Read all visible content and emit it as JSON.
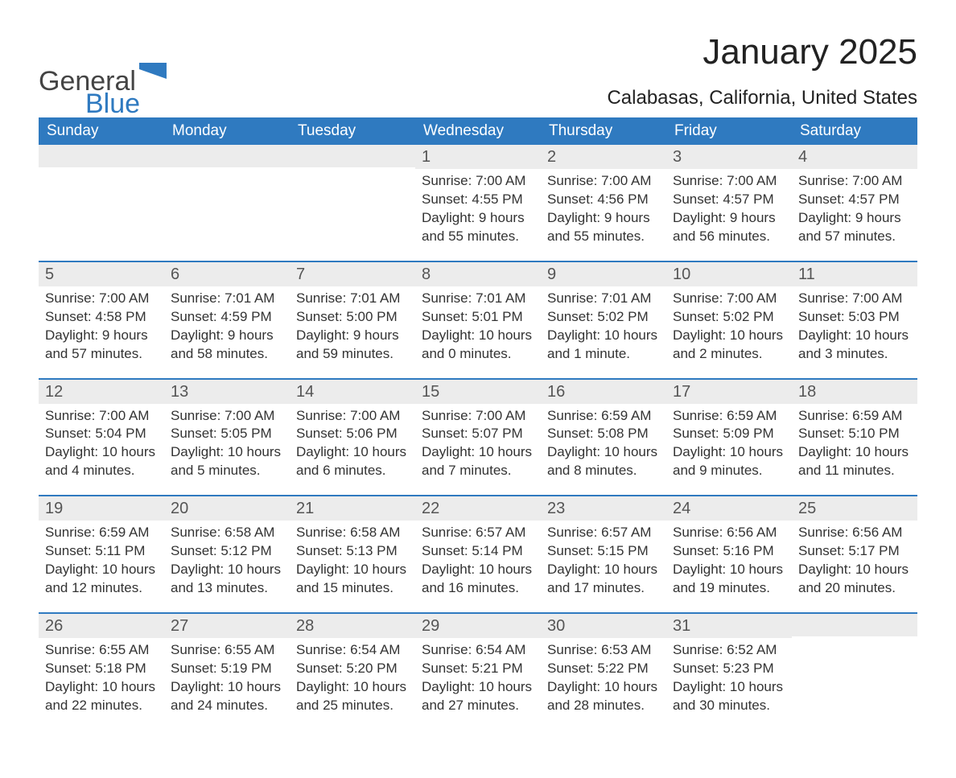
{
  "brand": {
    "line1": "General",
    "line2": "Blue"
  },
  "colors": {
    "blue": "#2f7ac0",
    "light_gray": "#ececec",
    "text": "#333333",
    "white": "#ffffff"
  },
  "header": {
    "month_title": "January 2025",
    "location": "Calabasas, California, United States"
  },
  "weekdays": [
    "Sunday",
    "Monday",
    "Tuesday",
    "Wednesday",
    "Thursday",
    "Friday",
    "Saturday"
  ],
  "weeks": [
    [
      null,
      null,
      null,
      {
        "d": "1",
        "sr": "Sunrise: 7:00 AM",
        "ss": "Sunset: 4:55 PM",
        "dl1": "Daylight: 9 hours",
        "dl2": "and 55 minutes."
      },
      {
        "d": "2",
        "sr": "Sunrise: 7:00 AM",
        "ss": "Sunset: 4:56 PM",
        "dl1": "Daylight: 9 hours",
        "dl2": "and 55 minutes."
      },
      {
        "d": "3",
        "sr": "Sunrise: 7:00 AM",
        "ss": "Sunset: 4:57 PM",
        "dl1": "Daylight: 9 hours",
        "dl2": "and 56 minutes."
      },
      {
        "d": "4",
        "sr": "Sunrise: 7:00 AM",
        "ss": "Sunset: 4:57 PM",
        "dl1": "Daylight: 9 hours",
        "dl2": "and 57 minutes."
      }
    ],
    [
      {
        "d": "5",
        "sr": "Sunrise: 7:00 AM",
        "ss": "Sunset: 4:58 PM",
        "dl1": "Daylight: 9 hours",
        "dl2": "and 57 minutes."
      },
      {
        "d": "6",
        "sr": "Sunrise: 7:01 AM",
        "ss": "Sunset: 4:59 PM",
        "dl1": "Daylight: 9 hours",
        "dl2": "and 58 minutes."
      },
      {
        "d": "7",
        "sr": "Sunrise: 7:01 AM",
        "ss": "Sunset: 5:00 PM",
        "dl1": "Daylight: 9 hours",
        "dl2": "and 59 minutes."
      },
      {
        "d": "8",
        "sr": "Sunrise: 7:01 AM",
        "ss": "Sunset: 5:01 PM",
        "dl1": "Daylight: 10 hours",
        "dl2": "and 0 minutes."
      },
      {
        "d": "9",
        "sr": "Sunrise: 7:01 AM",
        "ss": "Sunset: 5:02 PM",
        "dl1": "Daylight: 10 hours",
        "dl2": "and 1 minute."
      },
      {
        "d": "10",
        "sr": "Sunrise: 7:00 AM",
        "ss": "Sunset: 5:02 PM",
        "dl1": "Daylight: 10 hours",
        "dl2": "and 2 minutes."
      },
      {
        "d": "11",
        "sr": "Sunrise: 7:00 AM",
        "ss": "Sunset: 5:03 PM",
        "dl1": "Daylight: 10 hours",
        "dl2": "and 3 minutes."
      }
    ],
    [
      {
        "d": "12",
        "sr": "Sunrise: 7:00 AM",
        "ss": "Sunset: 5:04 PM",
        "dl1": "Daylight: 10 hours",
        "dl2": "and 4 minutes."
      },
      {
        "d": "13",
        "sr": "Sunrise: 7:00 AM",
        "ss": "Sunset: 5:05 PM",
        "dl1": "Daylight: 10 hours",
        "dl2": "and 5 minutes."
      },
      {
        "d": "14",
        "sr": "Sunrise: 7:00 AM",
        "ss": "Sunset: 5:06 PM",
        "dl1": "Daylight: 10 hours",
        "dl2": "and 6 minutes."
      },
      {
        "d": "15",
        "sr": "Sunrise: 7:00 AM",
        "ss": "Sunset: 5:07 PM",
        "dl1": "Daylight: 10 hours",
        "dl2": "and 7 minutes."
      },
      {
        "d": "16",
        "sr": "Sunrise: 6:59 AM",
        "ss": "Sunset: 5:08 PM",
        "dl1": "Daylight: 10 hours",
        "dl2": "and 8 minutes."
      },
      {
        "d": "17",
        "sr": "Sunrise: 6:59 AM",
        "ss": "Sunset: 5:09 PM",
        "dl1": "Daylight: 10 hours",
        "dl2": "and 9 minutes."
      },
      {
        "d": "18",
        "sr": "Sunrise: 6:59 AM",
        "ss": "Sunset: 5:10 PM",
        "dl1": "Daylight: 10 hours",
        "dl2": "and 11 minutes."
      }
    ],
    [
      {
        "d": "19",
        "sr": "Sunrise: 6:59 AM",
        "ss": "Sunset: 5:11 PM",
        "dl1": "Daylight: 10 hours",
        "dl2": "and 12 minutes."
      },
      {
        "d": "20",
        "sr": "Sunrise: 6:58 AM",
        "ss": "Sunset: 5:12 PM",
        "dl1": "Daylight: 10 hours",
        "dl2": "and 13 minutes."
      },
      {
        "d": "21",
        "sr": "Sunrise: 6:58 AM",
        "ss": "Sunset: 5:13 PM",
        "dl1": "Daylight: 10 hours",
        "dl2": "and 15 minutes."
      },
      {
        "d": "22",
        "sr": "Sunrise: 6:57 AM",
        "ss": "Sunset: 5:14 PM",
        "dl1": "Daylight: 10 hours",
        "dl2": "and 16 minutes."
      },
      {
        "d": "23",
        "sr": "Sunrise: 6:57 AM",
        "ss": "Sunset: 5:15 PM",
        "dl1": "Daylight: 10 hours",
        "dl2": "and 17 minutes."
      },
      {
        "d": "24",
        "sr": "Sunrise: 6:56 AM",
        "ss": "Sunset: 5:16 PM",
        "dl1": "Daylight: 10 hours",
        "dl2": "and 19 minutes."
      },
      {
        "d": "25",
        "sr": "Sunrise: 6:56 AM",
        "ss": "Sunset: 5:17 PM",
        "dl1": "Daylight: 10 hours",
        "dl2": "and 20 minutes."
      }
    ],
    [
      {
        "d": "26",
        "sr": "Sunrise: 6:55 AM",
        "ss": "Sunset: 5:18 PM",
        "dl1": "Daylight: 10 hours",
        "dl2": "and 22 minutes."
      },
      {
        "d": "27",
        "sr": "Sunrise: 6:55 AM",
        "ss": "Sunset: 5:19 PM",
        "dl1": "Daylight: 10 hours",
        "dl2": "and 24 minutes."
      },
      {
        "d": "28",
        "sr": "Sunrise: 6:54 AM",
        "ss": "Sunset: 5:20 PM",
        "dl1": "Daylight: 10 hours",
        "dl2": "and 25 minutes."
      },
      {
        "d": "29",
        "sr": "Sunrise: 6:54 AM",
        "ss": "Sunset: 5:21 PM",
        "dl1": "Daylight: 10 hours",
        "dl2": "and 27 minutes."
      },
      {
        "d": "30",
        "sr": "Sunrise: 6:53 AM",
        "ss": "Sunset: 5:22 PM",
        "dl1": "Daylight: 10 hours",
        "dl2": "and 28 minutes."
      },
      {
        "d": "31",
        "sr": "Sunrise: 6:52 AM",
        "ss": "Sunset: 5:23 PM",
        "dl1": "Daylight: 10 hours",
        "dl2": "and 30 minutes."
      },
      null
    ]
  ]
}
